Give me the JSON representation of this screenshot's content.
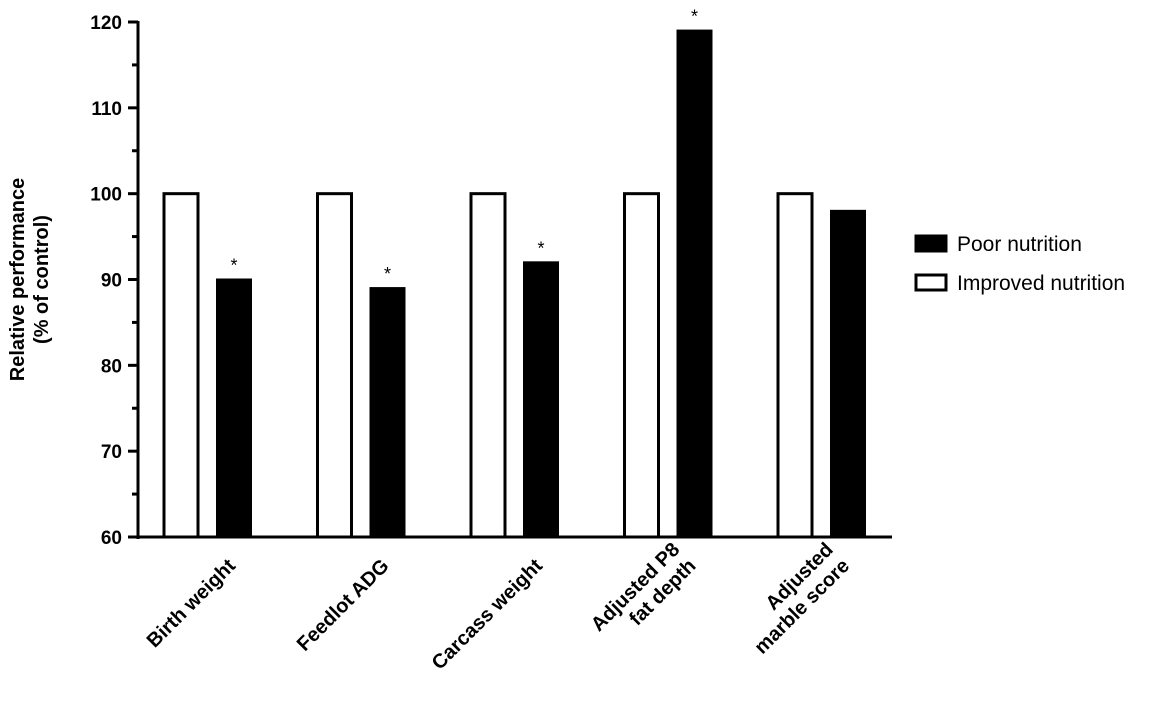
{
  "chart_data": {
    "type": "bar",
    "title": "",
    "xlabel": "",
    "ylabel_lines": [
      "Relative performance",
      "(% of control)"
    ],
    "ylim": [
      60,
      120
    ],
    "yticks": [
      60,
      70,
      80,
      90,
      100,
      110,
      120
    ],
    "categories": [
      {
        "lines": [
          "Birth weight"
        ]
      },
      {
        "lines": [
          "Feedlot ADG"
        ]
      },
      {
        "lines": [
          "Carcass weight"
        ]
      },
      {
        "lines": [
          "Adjusted P8",
          "fat depth"
        ]
      },
      {
        "lines": [
          "Adjusted",
          "marble score"
        ]
      }
    ],
    "series": [
      {
        "name": "Improved nutrition",
        "color": "#ffffff",
        "stroke": "#000000",
        "values": [
          100,
          100,
          100,
          100,
          100
        ]
      },
      {
        "name": "Poor nutrition",
        "color": "#000000",
        "stroke": "#000000",
        "values": [
          90,
          89,
          92,
          119,
          98
        ],
        "significance": [
          "*",
          "*",
          "*",
          "*",
          ""
        ]
      }
    ],
    "legend": {
      "position": "right",
      "order": [
        "Poor nutrition",
        "Improved nutrition"
      ]
    }
  }
}
